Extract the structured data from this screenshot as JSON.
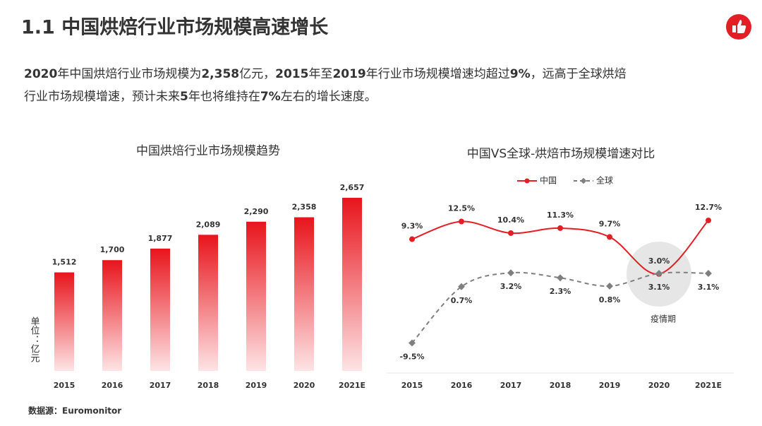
{
  "title": "1.1 中国烘焙行业市场规模高速增长",
  "description": [
    [
      {
        "text": "2020",
        "bold": true
      },
      {
        "text": "年中国烘焙行业市场规模为"
      },
      {
        "text": "2,358",
        "bold": true
      },
      {
        "text": "亿元，"
      },
      {
        "text": "2015",
        "bold": true
      },
      {
        "text": "年至"
      },
      {
        "text": "2019",
        "bold": true
      },
      {
        "text": "年行业市场规模增速均超过"
      },
      {
        "text": "9%",
        "bold": true
      },
      {
        "text": "，远高于全球烘焙"
      }
    ],
    [
      {
        "text": "行业市场规模增速，预计未来"
      },
      {
        "text": "5",
        "bold": true
      },
      {
        "text": "年也将维持在"
      },
      {
        "text": "7%",
        "bold": true
      },
      {
        "text": "左右的增长速度。"
      }
    ]
  ],
  "source": "数据源：Euromonitor",
  "chart_data": [
    {
      "type": "bar",
      "title": "中国烘焙行业市场规模趋势",
      "unit": "单位：亿元",
      "categories": [
        "2015",
        "2016",
        "2017",
        "2018",
        "2019",
        "2020",
        "2021E"
      ],
      "values": [
        1512,
        1700,
        1877,
        2089,
        2290,
        2358,
        2657
      ],
      "value_labels": [
        "1,512",
        "1,700",
        "1,877",
        "2,089",
        "2,290",
        "2,358",
        "2,657"
      ],
      "color": "#e8141c",
      "ylim": [
        0,
        2700
      ]
    },
    {
      "type": "line",
      "title": "中国VS全球-烘焙市场规模增速对比",
      "categories": [
        "2015",
        "2016",
        "2017",
        "2018",
        "2019",
        "2020",
        "2021E"
      ],
      "series": [
        {
          "name": "中国",
          "color": "#e31e24",
          "dashed": false,
          "label_position": "above",
          "values": [
            9.3,
            12.5,
            10.4,
            11.3,
            9.7,
            3.0,
            12.7
          ],
          "value_labels": [
            "9.3%",
            "12.5%",
            "10.4%",
            "11.3%",
            "9.7%",
            "3.0%",
            "12.7%"
          ]
        },
        {
          "name": "全球",
          "color": "#7f7f7f",
          "dashed": true,
          "label_position": "below",
          "values": [
            -9.5,
            0.7,
            3.2,
            2.3,
            0.8,
            3.1,
            3.1
          ],
          "value_labels": [
            "-9.5%",
            "0.7%",
            "3.2%",
            "2.3%",
            "0.8%",
            "3.1%",
            "3.1%"
          ]
        }
      ],
      "ylim": [
        -12,
        15
      ],
      "annotation": {
        "text": "疫情期",
        "category": 5
      }
    }
  ]
}
